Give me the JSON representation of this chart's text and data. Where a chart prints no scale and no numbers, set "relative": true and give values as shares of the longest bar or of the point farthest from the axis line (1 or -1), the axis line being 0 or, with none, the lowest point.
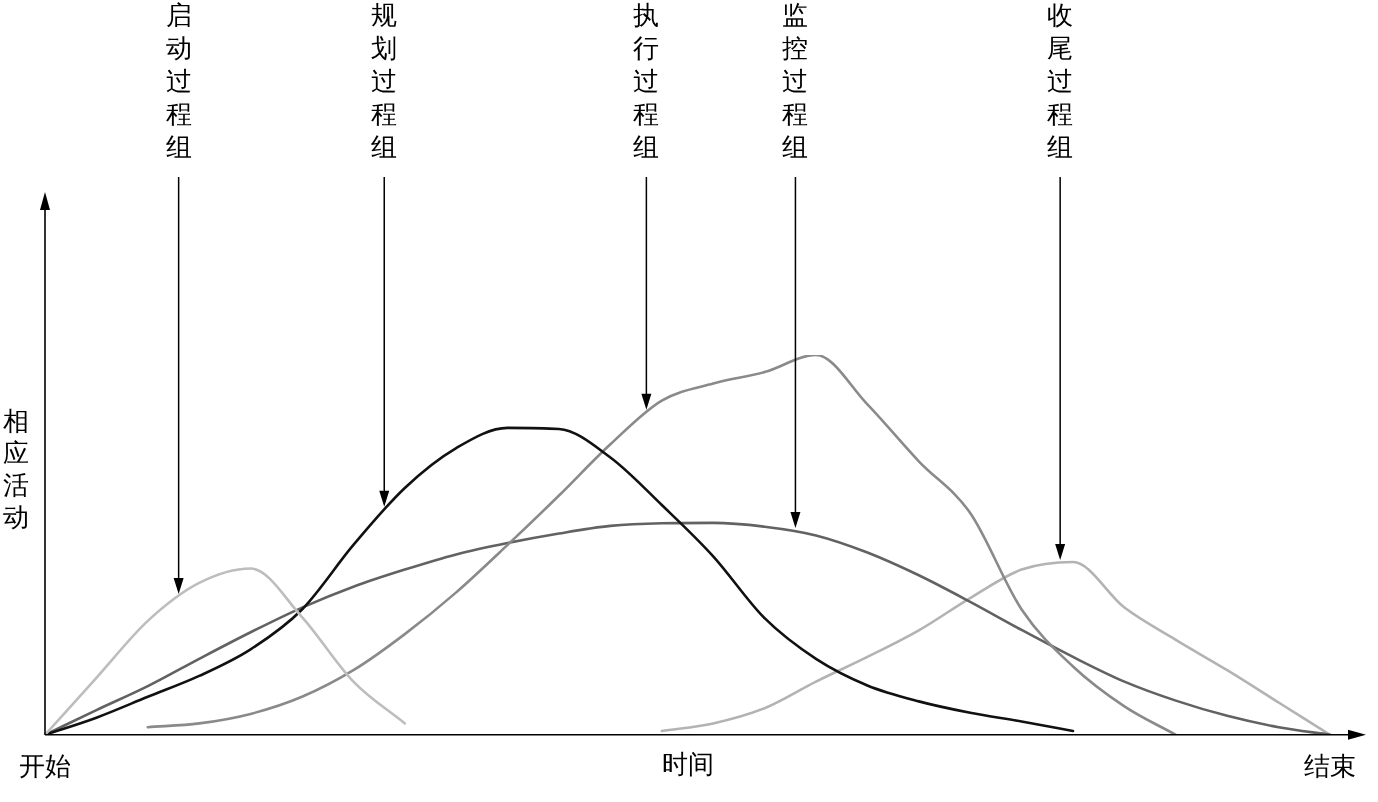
{
  "chart_data": {
    "type": "line",
    "relative": true,
    "xlabel": "时间",
    "ylabel": "相应活动",
    "annotations": [
      "启动过程组",
      "规划过程组",
      "执行过程组",
      "监控过程组",
      "收尾过程组"
    ],
    "categories": [
      "开始",
      null,
      null,
      null,
      null,
      null,
      null,
      null,
      null,
      null,
      null,
      null,
      null,
      null,
      null,
      null,
      null,
      null,
      null,
      null,
      null,
      null,
      null,
      null,
      null,
      "结束"
    ],
    "series": [
      {
        "color": "#bdbdbd",
        "values": [
          0,
          0.15,
          0.3,
          0.4,
          0.438,
          0.31,
          0.14,
          0.03,
          null,
          null,
          null,
          null,
          null,
          null,
          null,
          null,
          null,
          null,
          null,
          null,
          null,
          null,
          null,
          null,
          null,
          null
        ]
      },
      {
        "color": "#111111",
        "values": [
          0,
          0.045,
          0.1,
          0.155,
          0.225,
          0.33,
          0.5,
          0.65,
          0.755,
          0.808,
          0.805,
          0.73,
          0.605,
          0.47,
          0.307,
          0.2,
          0.13,
          0.088,
          0.058,
          0.035,
          0.01,
          null,
          null,
          null,
          null,
          null
        ]
      },
      {
        "color": "#8a8a8a",
        "values": [
          null,
          null,
          0.02,
          0.03,
          0.055,
          0.1,
          0.17,
          0.265,
          0.375,
          0.5,
          0.63,
          0.765,
          0.88,
          0.925,
          0.955,
          1,
          0.87,
          0.72,
          0.584,
          0.33,
          0.18,
          0.075,
          0,
          null,
          null,
          null
        ]
      },
      {
        "color": "#626262",
        "values": [
          0,
          0.065,
          0.128,
          0.2,
          0.27,
          0.335,
          0.39,
          0.435,
          0.475,
          0.505,
          0.53,
          0.55,
          0.557,
          0.558,
          0.548,
          0.525,
          0.48,
          0.42,
          0.35,
          0.276,
          0.205,
          0.14,
          0.09,
          0.05,
          0.02,
          0
        ]
      },
      {
        "color": "#b3b3b3",
        "values": [
          null,
          null,
          null,
          null,
          null,
          null,
          null,
          null,
          null,
          null,
          null,
          null,
          0.01,
          0.03,
          0.07,
          0.14,
          0.205,
          0.275,
          0.36,
          0.435,
          0.455,
          0.335,
          0.25,
          0.17,
          0.085,
          0
        ]
      }
    ]
  }
}
